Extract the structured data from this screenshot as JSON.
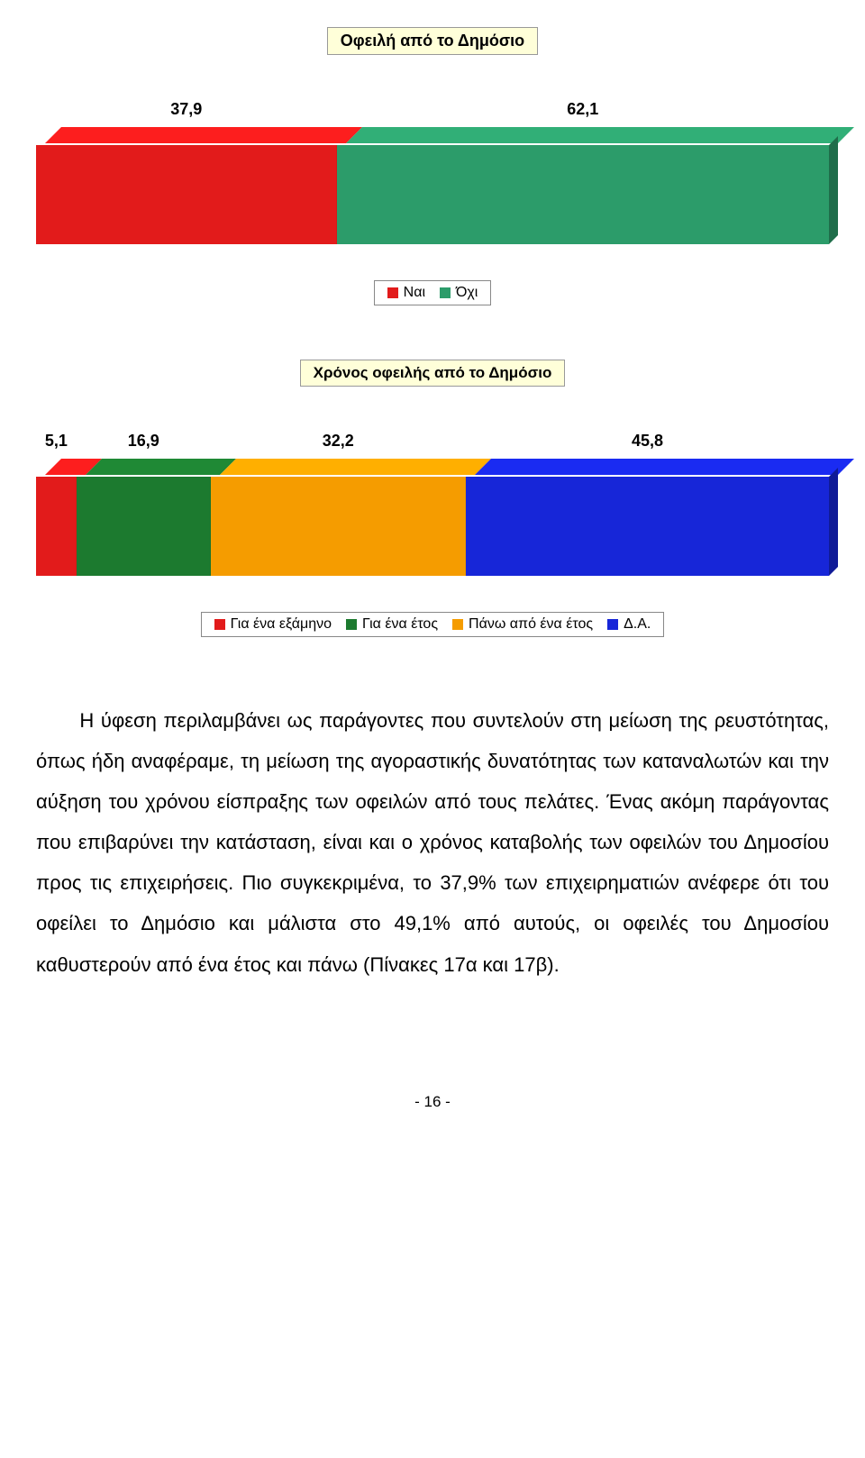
{
  "chart1": {
    "type": "stacked-bar",
    "title": "Οφειλή από το Δημόσιο",
    "values": [
      37.9,
      62.1
    ],
    "value_labels": [
      "37,9",
      "62,1"
    ],
    "bar_colors": [
      "#e21b1b",
      "#2c9c6a"
    ],
    "legend": [
      {
        "label": "Ναι",
        "color": "#e21b1b"
      },
      {
        "label": "Όχι",
        "color": "#2c9c6a"
      }
    ],
    "title_bg": "#ffffd9",
    "title_border": "#999999",
    "title_fontsize": 18
  },
  "chart2": {
    "type": "stacked-bar",
    "title": "Χρόνος οφειλής από το Δημόσιο",
    "values": [
      5.1,
      16.9,
      32.2,
      45.8
    ],
    "value_labels": [
      "5,1",
      "16,9",
      "32,2",
      "45,8"
    ],
    "bar_colors": [
      "#e21b1b",
      "#1c7a2f",
      "#f59c00",
      "#1726d8"
    ],
    "legend": [
      {
        "label": "Για ένα εξάμηνο",
        "color": "#e21b1b"
      },
      {
        "label": "Για ένα έτος",
        "color": "#1c7a2f"
      },
      {
        "label": "Πάνω από ένα έτος",
        "color": "#f59c00"
      },
      {
        "label": "Δ.Α.",
        "color": "#1726d8"
      }
    ],
    "title_bg": "#ffffd9",
    "title_border": "#999999",
    "title_fontsize": 17
  },
  "body_text": "Η ύφεση περιλαμβάνει ως παράγοντες που συντελούν στη μείωση της ρευστότητας, όπως ήδη αναφέραμε, τη μείωση της αγοραστικής δυνατότητας των καταναλωτών και την αύξηση του χρόνου είσπραξης των οφειλών από τους πελάτες. Ένας ακόμη παράγοντας που επιβαρύνει την κατάσταση, είναι και ο χρόνος καταβολής των οφειλών του Δημοσίου προς τις επιχειρήσεις. Πιο συγκεκριμένα, το 37,9% των επιχειρηματιών ανέφερε ότι του οφείλει το Δημόσιο και μάλιστα στο 49,1% από αυτούς, οι οφειλές του Δημοσίου καθυστερούν από ένα έτος και πάνω (Πίνακες 17α και 17β).",
  "page_number": "- 16 -"
}
